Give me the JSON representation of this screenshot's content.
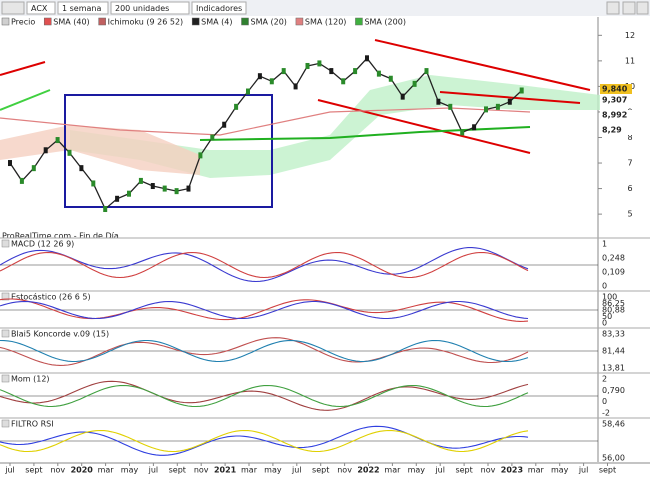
{
  "toolbar": {
    "symbol": "ACX",
    "timeframe": "1 semana",
    "units": "200 unidades",
    "indicators": "Indicadores"
  },
  "price_panel": {
    "legend": [
      {
        "name": "Precio",
        "color": "#d0d0d0"
      },
      {
        "name": "SMA (40)",
        "color": "#e05050"
      },
      {
        "name": "Ichimoku (9 26 52)",
        "color": "#c06060"
      },
      {
        "name": "SMA (4)",
        "color": "#202020"
      },
      {
        "name": "SMA (20)",
        "color": "#308030"
      },
      {
        "name": "SMA (120)",
        "color": "#e08080"
      },
      {
        "name": "SMA (200)",
        "color": "#40b040"
      }
    ],
    "watermark": "ProRealTime.com - Fin de Día",
    "ylim": [
      4.3,
      12.6
    ],
    "yticks": [
      12,
      11,
      10,
      9,
      8,
      7,
      6,
      5
    ],
    "close": [
      7.0,
      6.3,
      6.8,
      7.5,
      7.9,
      7.4,
      6.8,
      6.2,
      5.2,
      5.6,
      5.8,
      6.3,
      6.1,
      6.0,
      5.9,
      6.0,
      7.3,
      8.0,
      8.5,
      9.2,
      9.8,
      10.4,
      10.2,
      10.6,
      10.0,
      10.8,
      10.9,
      10.6,
      10.2,
      10.6,
      11.1,
      10.5,
      10.3,
      9.6,
      10.1,
      10.6,
      9.4,
      9.2,
      8.2,
      8.4,
      9.1,
      9.2,
      9.4,
      9.84
    ],
    "price_tags": [
      {
        "label": "9,840",
        "color": "#f0c020"
      },
      {
        "label": "9,307",
        "color": "#e08080"
      },
      {
        "label": "8,992",
        "color": "#e05050"
      },
      {
        "label": "8,29",
        "color": "#40b040"
      }
    ]
  },
  "panels": [
    {
      "title": "MACD (12 26 9)",
      "labels": [
        "1",
        "0,248",
        "0,109",
        "0"
      ]
    },
    {
      "title": "Estocástico (26 6 5)",
      "labels": [
        "100",
        "86,25",
        "80,88",
        "50",
        "0"
      ]
    },
    {
      "title": "Blai5 Koncorde v.09 (15)",
      "labels": [
        "83,33",
        "81,44",
        "13,81"
      ]
    },
    {
      "title": "Mom (12)",
      "labels": [
        "2",
        "0,790",
        "0",
        "-2"
      ]
    },
    {
      "title": "FILTRO RSI",
      "labels": [
        "58,46",
        "56,00"
      ]
    }
  ],
  "x_axis": [
    "jul",
    "sept",
    "nov",
    "2020",
    "mar",
    "may",
    "jul",
    "sept",
    "nov",
    "2021",
    "mar",
    "may",
    "jul",
    "sept",
    "nov",
    "2022",
    "mar",
    "may",
    "jul",
    "sept",
    "nov",
    "2023",
    "mar",
    "may",
    "jul",
    "sept"
  ]
}
